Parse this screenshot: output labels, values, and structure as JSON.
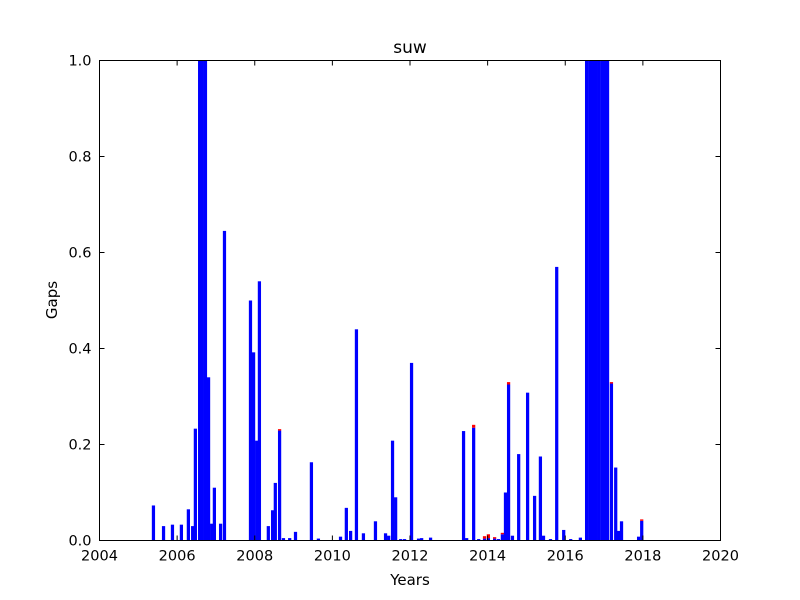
{
  "chart_data": {
    "type": "bar",
    "stacked": true,
    "title": "suw",
    "x_label": "Years",
    "y_label": "Gaps",
    "x": [
      2005.39,
      2005.65,
      2005.88,
      2006.11,
      2006.29,
      2006.4,
      2006.47,
      2006.58,
      2006.65,
      2006.73,
      2006.81,
      2006.89,
      2006.96,
      2007.12,
      2007.22,
      2007.89,
      2007.97,
      2008.05,
      2008.12,
      2008.35,
      2008.46,
      2008.53,
      2008.64,
      2008.74,
      2008.9,
      2009.05,
      2009.46,
      2009.64,
      2010.21,
      2010.36,
      2010.47,
      2010.62,
      2010.8,
      2011.11,
      2011.37,
      2011.45,
      2011.55,
      2011.63,
      2011.76,
      2011.86,
      2012.04,
      2012.22,
      2012.3,
      2012.53,
      2013.38,
      2013.46,
      2013.64,
      2013.77,
      2013.92,
      2014.02,
      2014.18,
      2014.28,
      2014.38,
      2014.46,
      2014.54,
      2014.64,
      2014.8,
      2015.03,
      2015.21,
      2015.36,
      2015.44,
      2015.62,
      2015.78,
      2015.96,
      2016.14,
      2016.39,
      2016.55,
      2016.63,
      2016.7,
      2016.78,
      2016.86,
      2016.94,
      2017.01,
      2017.09,
      2017.19,
      2017.3,
      2017.37,
      2017.45,
      2017.89,
      2017.97
    ],
    "series": [
      {
        "color": "#0000ff",
        "values": [
          0.073,
          0.03,
          0.033,
          0.033,
          0.065,
          0.03,
          0.233,
          1,
          1,
          1,
          0.34,
          0.035,
          0.11,
          0.035,
          0.645,
          0.5,
          0.392,
          0.208,
          0.54,
          0.03,
          0.063,
          0.12,
          0.229,
          0.005,
          0.005,
          0.018,
          0.163,
          0.004,
          0.008,
          0.068,
          0.02,
          0.44,
          0.015,
          0.04,
          0.015,
          0.01,
          0.208,
          0.09,
          0.003,
          0.003,
          0.37,
          0.004,
          0.005,
          0.006,
          0.228,
          0.005,
          0.235,
          0.003,
          0.004,
          0.005,
          0.004,
          0.003,
          0.013,
          0.1,
          0.325,
          0.01,
          0.18,
          0.308,
          0.093,
          0.175,
          0.01,
          0.003,
          0.57,
          0.022,
          0.003,
          0.006,
          1,
          1,
          1,
          1,
          1,
          1,
          1,
          1,
          0.327,
          0.152,
          0.02,
          0.04,
          0.008,
          0.041
        ]
      },
      {
        "color": "#ff0000",
        "values": [
          null,
          null,
          null,
          null,
          null,
          null,
          null,
          null,
          null,
          null,
          null,
          null,
          null,
          null,
          null,
          null,
          null,
          null,
          null,
          null,
          null,
          null,
          0.003,
          null,
          null,
          null,
          null,
          null,
          null,
          null,
          null,
          null,
          null,
          null,
          null,
          null,
          null,
          null,
          null,
          null,
          null,
          null,
          null,
          null,
          null,
          null,
          0.006,
          null,
          0.005,
          0.008,
          0.003,
          null,
          0.003,
          null,
          0.005,
          null,
          null,
          null,
          null,
          null,
          null,
          null,
          null,
          null,
          null,
          null,
          null,
          null,
          null,
          null,
          null,
          null,
          null,
          null,
          0.003,
          null,
          null,
          null,
          null,
          0.003
        ]
      }
    ],
    "xlim": [
      2004,
      2020
    ],
    "xticks": [
      2004,
      2006,
      2008,
      2010,
      2012,
      2014,
      2016,
      2018,
      2020
    ],
    "ylim": [
      0,
      1
    ],
    "yticks": [
      {
        "value": 0,
        "label": "0.0"
      },
      0.2,
      0.4,
      0.6,
      0.8,
      {
        "value": 1,
        "label": "1.0"
      }
    ],
    "grid": false
  }
}
